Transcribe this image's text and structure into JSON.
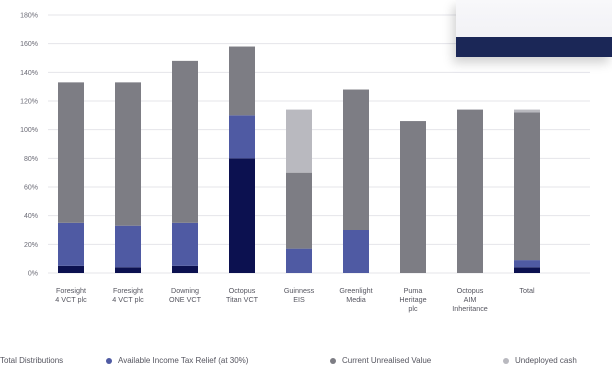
{
  "chart_data": {
    "type": "bar",
    "stacked": true,
    "categories": [
      [
        "Foresight",
        "4 VCT plc"
      ],
      [
        "Foresight",
        "4 VCT plc"
      ],
      [
        "Downing",
        "ONE VCT"
      ],
      [
        "Octopus",
        "Titan VCT"
      ],
      [
        "Guinness",
        "EIS"
      ],
      [
        "Greenlight",
        "Media"
      ],
      [
        "Puma",
        "Heritage",
        "plc"
      ],
      [
        "Octopus",
        "AIM",
        "Inheritance"
      ],
      [
        "Total"
      ]
    ],
    "series": [
      {
        "name": "Total Distributions",
        "color": "#0c1150",
        "values": [
          5,
          4,
          5,
          80,
          0,
          0,
          0,
          0,
          4
        ]
      },
      {
        "name": "Available Income Tax Relief (at 30%)",
        "color": "#4f5aa3",
        "values": [
          30,
          29,
          30,
          30,
          17,
          30,
          0,
          0,
          5
        ]
      },
      {
        "name": "Current Unrealised Value",
        "color": "#7d7d84",
        "values": [
          98,
          100,
          113,
          48,
          53,
          98,
          106,
          114,
          103
        ]
      },
      {
        "name": "Undeployed cash",
        "color": "#b9b9bf",
        "values": [
          0,
          0,
          0,
          0,
          44,
          0,
          0,
          0,
          2
        ]
      }
    ],
    "y_ticks": [
      "0%",
      "20%",
      "40%",
      "60%",
      "80%",
      "100%",
      "120%",
      "140%",
      "160%",
      "180%"
    ],
    "ylim": [
      0,
      180
    ],
    "y_unit": "%",
    "grid": true,
    "legend_position": "bottom"
  },
  "legend": [
    {
      "label": "Total Distributions",
      "color": "#0c1150"
    },
    {
      "label": "Available Income Tax Relief (at 30%)",
      "color": "#4f5aa3"
    },
    {
      "label": "Current Unrealised Value",
      "color": "#7d7d84"
    },
    {
      "label": "Undeployed cash",
      "color": "#b9b9bf"
    }
  ]
}
